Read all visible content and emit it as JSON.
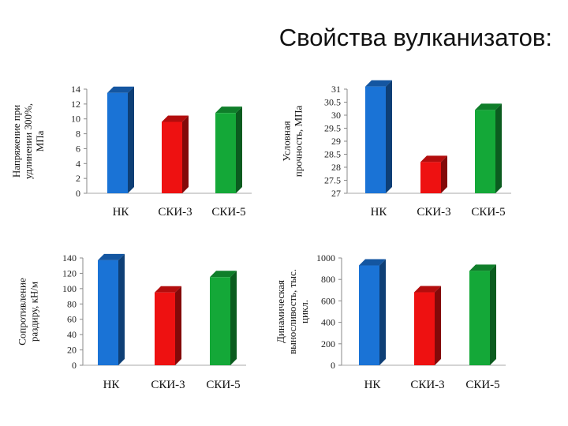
{
  "slide": {
    "title": "Свойства вулканизатов:"
  },
  "chart_data": [
    {
      "type": "bar",
      "ylabel_lines": [
        "Напряжение при",
        "удлинении 300%,",
        "МПа"
      ],
      "categories": [
        "НК",
        "СКИ-3",
        "СКИ-5"
      ],
      "values": [
        13.5,
        9.6,
        10.8
      ],
      "colors": [
        "#1a73d6",
        "#ee1111",
        "#14a838"
      ],
      "ylim": [
        0,
        14
      ],
      "ticks": [
        0,
        2,
        4,
        6,
        8,
        10,
        12,
        14
      ]
    },
    {
      "type": "bar",
      "ylabel_lines": [
        "Условная",
        "прочность, МПа"
      ],
      "categories": [
        "НК",
        "СКИ-3",
        "СКИ-5"
      ],
      "values": [
        31.1,
        28.2,
        30.2
      ],
      "colors": [
        "#1a73d6",
        "#ee1111",
        "#14a838"
      ],
      "ylim": [
        27,
        31
      ],
      "ticks": [
        27,
        27.5,
        28,
        28.5,
        29,
        29.5,
        30,
        30.5,
        31
      ]
    },
    {
      "type": "bar",
      "ylabel_lines": [
        "Сопротивление",
        "раздиру, кН/м"
      ],
      "categories": [
        "НК",
        "СКИ-3",
        "СКИ-5"
      ],
      "values": [
        137,
        95,
        115
      ],
      "colors": [
        "#1a73d6",
        "#ee1111",
        "#14a838"
      ],
      "ylim": [
        0,
        140
      ],
      "ticks": [
        0,
        20,
        40,
        60,
        80,
        100,
        120,
        140
      ]
    },
    {
      "type": "bar",
      "ylabel_lines": [
        "Динамическая",
        "выносливость, тыс.",
        "цикл."
      ],
      "categories": [
        "НК",
        "СКИ-3",
        "СКИ-5"
      ],
      "values": [
        930,
        680,
        880
      ],
      "colors": [
        "#1a73d6",
        "#ee1111",
        "#14a838"
      ],
      "ylim": [
        0,
        1000
      ],
      "ticks": [
        0,
        200,
        400,
        600,
        800,
        1000
      ]
    }
  ]
}
